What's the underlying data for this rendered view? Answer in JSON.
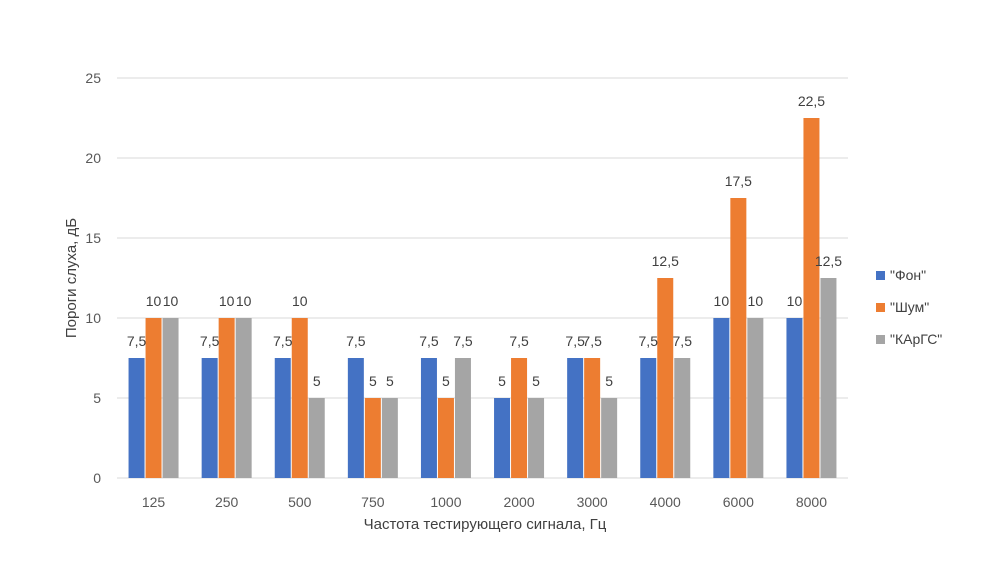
{
  "chart_data": {
    "type": "bar",
    "xlabel": "Частота тестирующего сигнала, Гц",
    "ylabel": "Пороги слуха, дБ",
    "ylim": [
      0,
      25
    ],
    "yticks": [
      0,
      5,
      10,
      15,
      20,
      25
    ],
    "grid": true,
    "legend_position": "right",
    "categories": [
      "125",
      "250",
      "500",
      "750",
      "1000",
      "2000",
      "3000",
      "4000",
      "6000",
      "8000"
    ],
    "series": [
      {
        "name": "\"Фон\"",
        "color": "#4472C4",
        "values": [
          7.5,
          7.5,
          7.5,
          7.5,
          7.5,
          5,
          7.5,
          7.5,
          10,
          10
        ],
        "labels": [
          "7,5",
          "7,5",
          "7,5",
          "7,5",
          "7,5",
          "5",
          "7,5",
          "7,5",
          "10",
          "10"
        ]
      },
      {
        "name": "\"Шум\"",
        "color": "#ED7D31",
        "values": [
          10,
          10,
          10,
          5,
          5,
          7.5,
          7.5,
          12.5,
          17.5,
          22.5
        ],
        "labels": [
          "10",
          "10",
          "10",
          "5",
          "5",
          "7,5",
          "7,5",
          "12,5",
          "17,5",
          "22,5"
        ]
      },
      {
        "name": "\"КАрГС\"",
        "color": "#A5A5A5",
        "values": [
          10,
          10,
          5,
          5,
          7.5,
          5,
          5,
          7.5,
          10,
          12.5
        ],
        "labels": [
          "10",
          "10",
          "5",
          "5",
          "7,5",
          "5",
          "5",
          "7,5",
          "10",
          "12,5"
        ]
      }
    ]
  }
}
